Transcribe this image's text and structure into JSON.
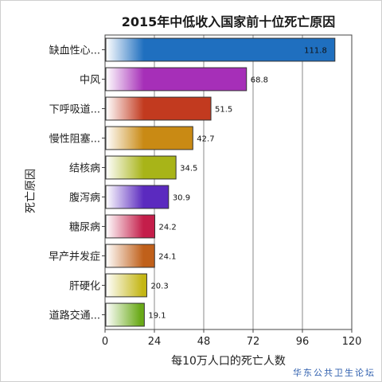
{
  "chart_data": {
    "type": "bar",
    "orientation": "horizontal",
    "title": "2015年中低收入国家前十位死亡原因",
    "xlabel": "每10万人口的死亡人数",
    "ylabel": "死亡原因",
    "xlim": [
      0,
      120
    ],
    "xticks": [
      0,
      24,
      48,
      72,
      96,
      120
    ],
    "grid": true,
    "categories": [
      "缺血性心...",
      "中风",
      "下呼吸道...",
      "慢性阻塞...",
      "结核病",
      "腹泻病",
      "糖尿病",
      "早产并发症",
      "肝硬化",
      "道路交通..."
    ],
    "values": [
      111.8,
      68.8,
      51.5,
      42.7,
      34.5,
      30.9,
      24.2,
      24.1,
      20.3,
      19.1
    ],
    "value_labels": [
      "111.8",
      "68.8",
      "51.5",
      "42.7",
      "34.5",
      "30.9",
      "24.2",
      "24.1",
      "20.3",
      "19.1"
    ],
    "colors": [
      "#1f6fbf",
      "#a62fb8",
      "#c23a1f",
      "#c98a14",
      "#a8b418",
      "#5b2abf",
      "#c41e4a",
      "#c0601a",
      "#c4b614",
      "#6aaa18"
    ]
  },
  "watermark": "华东公共卫生论坛"
}
